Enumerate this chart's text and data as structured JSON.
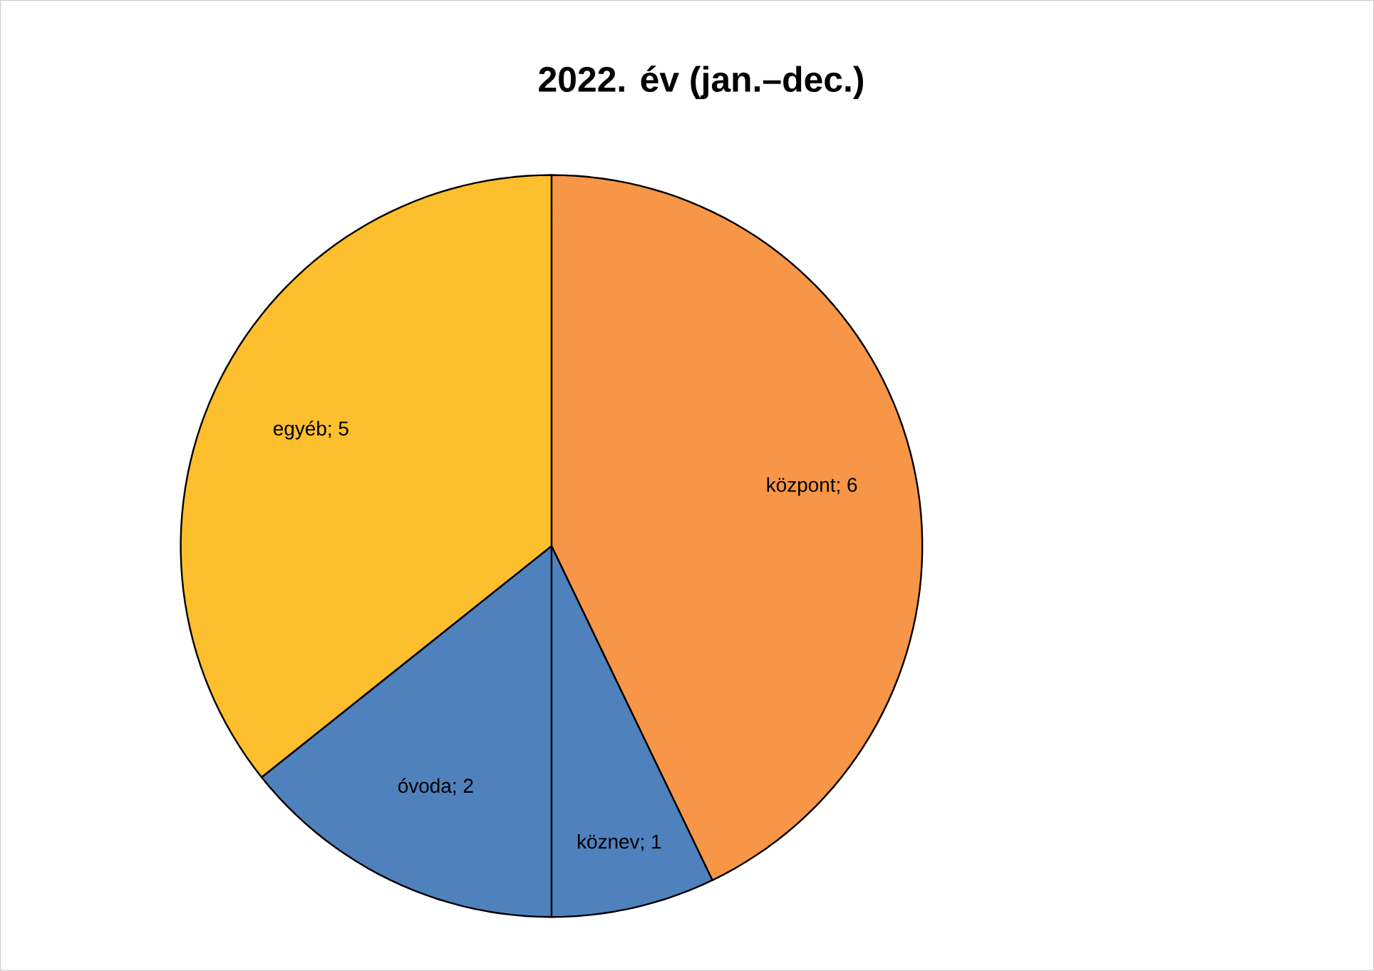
{
  "chart_data": {
    "type": "pie",
    "title": "2022. év (jan.–dec.)",
    "categories": [
      "központ",
      "köznev",
      "óvoda",
      "egyéb"
    ],
    "values": [
      6,
      1,
      2,
      5
    ],
    "value_labels": [
      "; 6",
      "; 1",
      "; 2",
      "; 5"
    ],
    "colors": [
      "#f79646",
      "#4f81bd",
      "#4f81bd",
      "#fdbf2d"
    ]
  }
}
